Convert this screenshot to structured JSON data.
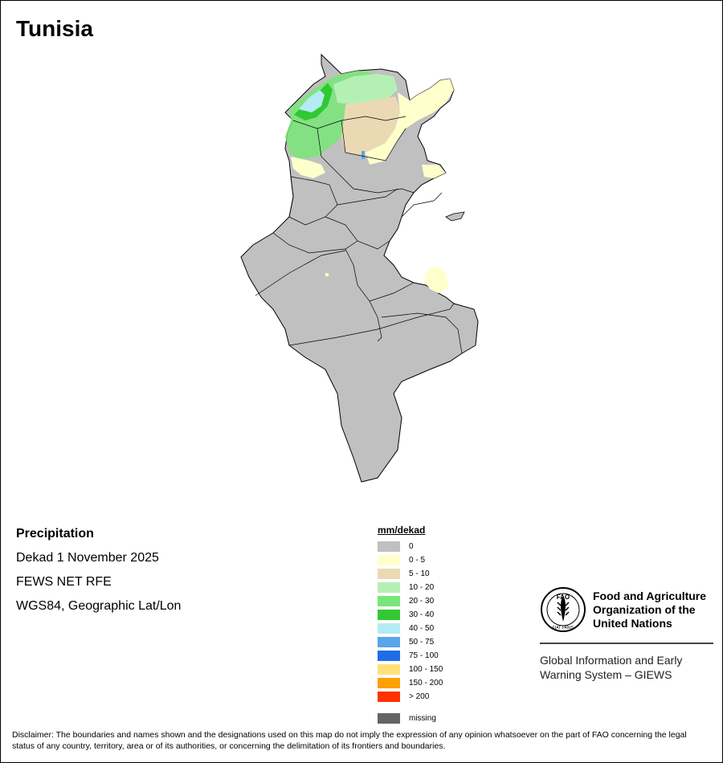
{
  "title": "Tunisia",
  "info": {
    "variable": "Precipitation",
    "period": "Dekad 1 November 2025",
    "source": "FEWS NET RFE",
    "projection": "WGS84, Geographic Lat/Lon"
  },
  "legend": {
    "title": "mm/dekad",
    "classes": [
      {
        "label": "0",
        "color": "#c0c0c0"
      },
      {
        "label": "0 - 5",
        "color": "#ffffcc"
      },
      {
        "label": "5 - 10",
        "color": "#ebd9b4"
      },
      {
        "label": "10 - 20",
        "color": "#b4f0b4"
      },
      {
        "label": "20 - 30",
        "color": "#78e678"
      },
      {
        "label": "30 - 40",
        "color": "#32c832"
      },
      {
        "label": "40 - 50",
        "color": "#b4ebf5"
      },
      {
        "label": "50 - 75",
        "color": "#5aa5eb"
      },
      {
        "label": "75 - 100",
        "color": "#1e6ee6"
      },
      {
        "label": "100 - 150",
        "color": "#ffe178"
      },
      {
        "label": "150 - 200",
        "color": "#ff9f00"
      },
      {
        "label": "> 200",
        "color": "#ff3200"
      }
    ],
    "missing": {
      "label": "missing",
      "color": "#646464"
    }
  },
  "fao": {
    "logo_text": "FAO",
    "logo_motto": "FIAT PANIS",
    "name_line1": "Food and Agriculture",
    "name_line2": "Organization of the",
    "name_line3": "United Nations",
    "giews_line1": "Global Information and Early",
    "giews_line2": "Warning System – GIEWS"
  },
  "disclaimer": "Disclaimer: The boundaries and names shown and the designations used on this map do not imply the expression of any opinion whatsoever on the part of FAO concerning the legal status of any country, territory, area or of its authorities, or concerning the delimitation of its frontiers and boundaries."
}
